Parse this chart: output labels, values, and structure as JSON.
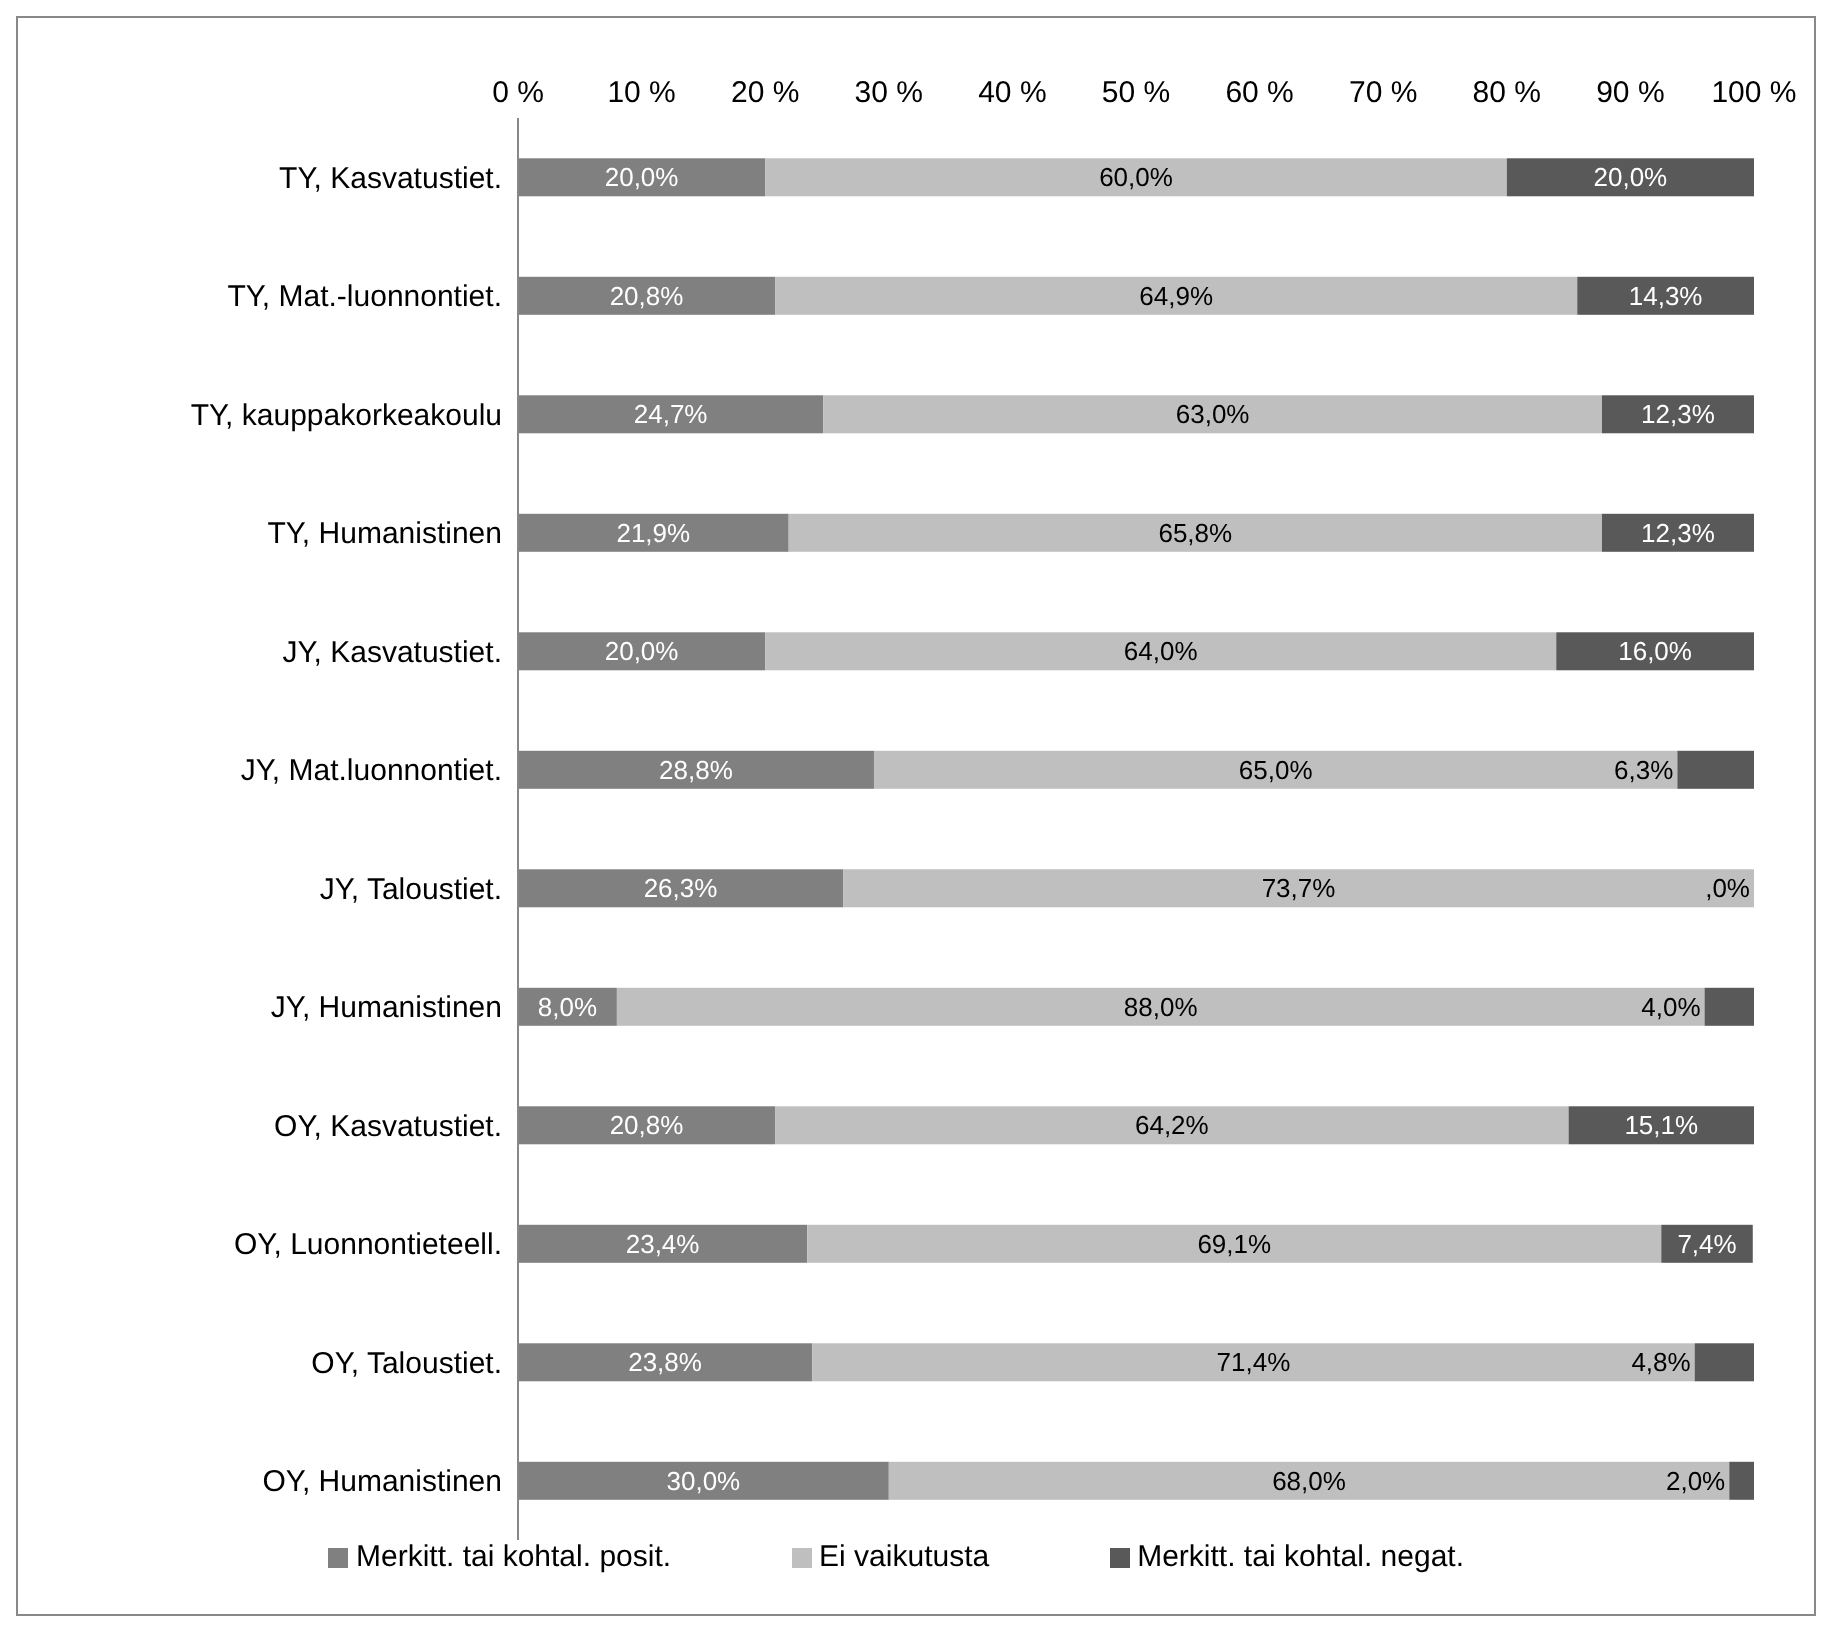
{
  "chart_data": {
    "type": "bar",
    "orientation": "horizontal",
    "stacked": true,
    "categories": [
      "TY, Kasvatustiet.",
      "TY, Mat.-luonnontiet.",
      "TY, kauppakorkeakoulu",
      "TY, Humanistinen",
      "JY, Kasvatustiet.",
      "JY, Mat.luonnontiet.",
      "JY, Taloustiet.",
      "JY, Humanistinen",
      "OY, Kasvatustiet.",
      "OY, Luonnontieteell.",
      "OY, Taloustiet.",
      "OY, Humanistinen"
    ],
    "series": [
      {
        "name": "Merkitt. tai kohtal. posit.",
        "color": "#808080",
        "values": [
          20.0,
          20.8,
          24.7,
          21.9,
          20.0,
          28.8,
          26.3,
          8.0,
          20.8,
          23.4,
          23.8,
          30.0
        ],
        "value_labels": [
          "20,0%",
          "20,8%",
          "24,7%",
          "21,9%",
          "20,0%",
          "28,8%",
          "26,3%",
          "8,0%",
          "20,8%",
          "23,4%",
          "23,8%",
          "30,0%"
        ]
      },
      {
        "name": "Ei vaikutusta",
        "color": "#bfbfbf",
        "values": [
          60.0,
          64.9,
          63.0,
          65.8,
          64.0,
          65.0,
          73.7,
          88.0,
          64.2,
          69.1,
          71.4,
          68.0
        ],
        "value_labels": [
          "60,0%",
          "64,9%",
          "63,0%",
          "65,8%",
          "64,0%",
          "65,0%",
          "73,7%",
          "88,0%",
          "64,2%",
          "69,1%",
          "71,4%",
          "68,0%"
        ]
      },
      {
        "name": "Merkitt. tai kohtal. negat.",
        "color": "#595959",
        "values": [
          20.0,
          14.3,
          12.3,
          12.3,
          16.0,
          6.3,
          0.0,
          4.0,
          15.1,
          7.4,
          4.8,
          2.0
        ],
        "value_labels": [
          "20,0%",
          "14,3%",
          "12,3%",
          "12,3%",
          "16,0%",
          "6,3%",
          ",0%",
          "4,0%",
          "15,1%",
          "7,4%",
          "4,8%",
          "2,0%"
        ]
      }
    ],
    "xlim": [
      0,
      100
    ],
    "xticks": [
      {
        "value": 0,
        "label": "0 %"
      },
      {
        "value": 10,
        "label": "10 %"
      },
      {
        "value": 20,
        "label": "20 %"
      },
      {
        "value": 30,
        "label": "30 %"
      },
      {
        "value": 40,
        "label": "40 %"
      },
      {
        "value": 50,
        "label": "50 %"
      },
      {
        "value": 60,
        "label": "60 %"
      },
      {
        "value": 70,
        "label": "70 %"
      },
      {
        "value": 80,
        "label": "80 %"
      },
      {
        "value": 90,
        "label": "90 %"
      },
      {
        "value": 100,
        "label": "100 %"
      }
    ],
    "grid": false,
    "legend": "bottom"
  }
}
